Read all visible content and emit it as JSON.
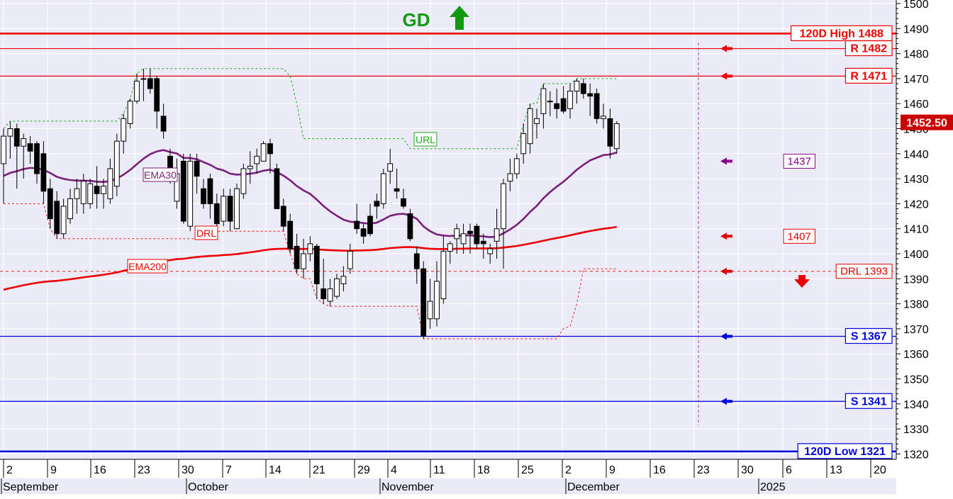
{
  "chart_data": {
    "type": "candlestick",
    "signal": {
      "label": "GD",
      "direction": "up",
      "color": "#119911"
    },
    "y_axis": {
      "min": 1320,
      "max": 1500,
      "step": 10,
      "position": "right"
    },
    "x_axis": {
      "day_ticks": [
        "2",
        "9",
        "16",
        "23",
        "30",
        "7",
        "14",
        "21",
        "29",
        "4",
        "11",
        "18",
        "25",
        "2",
        "9",
        "16",
        "23",
        "30",
        "6",
        "13",
        "20"
      ],
      "month_labels": [
        "September",
        "October",
        "November",
        "December",
        "2025"
      ]
    },
    "current_price": {
      "label": "1452.50",
      "value": 1452.5
    },
    "levels": [
      {
        "label": "120D High 1488",
        "value": 1488,
        "kind": "resistance",
        "arrow": false
      },
      {
        "label": "R 1482",
        "value": 1482,
        "kind": "resistance",
        "arrow": true
      },
      {
        "label": "R 1471",
        "value": 1471,
        "kind": "resistance",
        "arrow": true
      },
      {
        "label": "S 1367",
        "value": 1367,
        "kind": "support",
        "arrow": true
      },
      {
        "label": "S 1341",
        "value": 1341,
        "kind": "support",
        "arrow": true
      },
      {
        "label": "120D Low 1321",
        "value": 1321,
        "kind": "support",
        "arrow": false
      }
    ],
    "indicator_labels": [
      {
        "label": "1437",
        "value": 1437,
        "color": "#880088"
      },
      {
        "label": "1407",
        "value": 1407,
        "color": "#dd0000"
      },
      {
        "label": "DRL 1393",
        "value": 1393,
        "color": "#dd0000"
      }
    ],
    "series_tags": {
      "ema30": "EMA30",
      "ema200": "EMA200",
      "url": "URL",
      "drl": "DRL"
    },
    "candles": [
      [
        1436,
        1450,
        1420,
        1447
      ],
      [
        1447,
        1453,
        1438,
        1450
      ],
      [
        1450,
        1452,
        1426,
        1443
      ],
      [
        1443,
        1448,
        1430,
        1446
      ],
      [
        1444,
        1447,
        1436,
        1441
      ],
      [
        1444,
        1445,
        1428,
        1432
      ],
      [
        1440,
        1445,
        1420,
        1425
      ],
      [
        1426,
        1430,
        1410,
        1414
      ],
      [
        1421,
        1425,
        1406,
        1408
      ],
      [
        1408,
        1422,
        1406,
        1419
      ],
      [
        1414,
        1426,
        1412,
        1422
      ],
      [
        1422,
        1430,
        1416,
        1426
      ],
      [
        1420,
        1432,
        1416,
        1429
      ],
      [
        1420,
        1430,
        1418,
        1428
      ],
      [
        1427,
        1435,
        1418,
        1424
      ],
      [
        1424,
        1430,
        1418,
        1427
      ],
      [
        1422,
        1438,
        1420,
        1434
      ],
      [
        1427,
        1448,
        1423,
        1445
      ],
      [
        1445,
        1456,
        1440,
        1454
      ],
      [
        1452,
        1462,
        1450,
        1461
      ],
      [
        1461,
        1472,
        1460,
        1469
      ],
      [
        1470,
        1474,
        1461,
        1470
      ],
      [
        1470,
        1474,
        1464,
        1466
      ],
      [
        1470,
        1471,
        1450,
        1457
      ],
      [
        1455,
        1460,
        1446,
        1449
      ],
      [
        1439,
        1442,
        1428,
        1429
      ],
      [
        1421,
        1438,
        1418,
        1432
      ],
      [
        1437,
        1440,
        1412,
        1413
      ],
      [
        1411,
        1440,
        1409,
        1437
      ],
      [
        1437,
        1440,
        1424,
        1431
      ],
      [
        1426,
        1430,
        1418,
        1420
      ],
      [
        1430,
        1432,
        1414,
        1420
      ],
      [
        1420,
        1424,
        1410,
        1412
      ],
      [
        1413,
        1426,
        1411,
        1423
      ],
      [
        1423,
        1426,
        1409,
        1413
      ],
      [
        1410,
        1428,
        1410,
        1426
      ],
      [
        1424,
        1436,
        1422,
        1434
      ],
      [
        1434,
        1441,
        1428,
        1435
      ],
      [
        1436,
        1442,
        1432,
        1439
      ],
      [
        1437,
        1445,
        1437,
        1444
      ],
      [
        1444,
        1446,
        1432,
        1440
      ],
      [
        1434,
        1436,
        1418,
        1418
      ],
      [
        1419,
        1422,
        1409,
        1411
      ],
      [
        1413,
        1416,
        1400,
        1402
      ],
      [
        1403,
        1408,
        1392,
        1394
      ],
      [
        1394,
        1406,
        1390,
        1400
      ],
      [
        1400,
        1407,
        1397,
        1404
      ],
      [
        1403,
        1404,
        1382,
        1388
      ],
      [
        1386,
        1398,
        1380,
        1382
      ],
      [
        1381,
        1390,
        1379,
        1386
      ],
      [
        1383,
        1392,
        1382,
        1390
      ],
      [
        1388,
        1395,
        1385,
        1391
      ],
      [
        1394,
        1404,
        1392,
        1401
      ],
      [
        1413,
        1420,
        1408,
        1410
      ],
      [
        1410,
        1412,
        1404,
        1407
      ],
      [
        1415,
        1420,
        1407,
        1408
      ],
      [
        1421,
        1424,
        1414,
        1419
      ],
      [
        1420,
        1434,
        1418,
        1432
      ],
      [
        1433,
        1442,
        1428,
        1436
      ],
      [
        1426,
        1434,
        1422,
        1425
      ],
      [
        1422,
        1426,
        1418,
        1419
      ],
      [
        1416,
        1418,
        1405,
        1406
      ],
      [
        1400,
        1403,
        1388,
        1394
      ],
      [
        1394,
        1397,
        1366,
        1367
      ],
      [
        1374,
        1390,
        1370,
        1381
      ],
      [
        1374,
        1397,
        1371,
        1389
      ],
      [
        1382,
        1407,
        1380,
        1401
      ],
      [
        1401,
        1405,
        1396,
        1404
      ],
      [
        1406,
        1412,
        1400,
        1410
      ],
      [
        1404,
        1412,
        1400,
        1408
      ],
      [
        1409,
        1412,
        1400,
        1408
      ],
      [
        1411,
        1412,
        1402,
        1404
      ],
      [
        1405,
        1408,
        1398,
        1404
      ],
      [
        1400,
        1404,
        1396,
        1402
      ],
      [
        1405,
        1418,
        1398,
        1410
      ],
      [
        1410,
        1430,
        1394,
        1428
      ],
      [
        1429,
        1438,
        1425,
        1432
      ],
      [
        1432,
        1440,
        1430,
        1438
      ],
      [
        1440,
        1452,
        1436,
        1448
      ],
      [
        1444,
        1460,
        1440,
        1458
      ],
      [
        1452,
        1458,
        1446,
        1454
      ],
      [
        1456,
        1468,
        1450,
        1466
      ],
      [
        1461,
        1465,
        1455,
        1461
      ],
      [
        1460,
        1466,
        1454,
        1458
      ],
      [
        1462,
        1467,
        1456,
        1457
      ],
      [
        1458,
        1468,
        1454,
        1465
      ],
      [
        1465,
        1470,
        1460,
        1469
      ],
      [
        1468,
        1470,
        1462,
        1464
      ],
      [
        1464,
        1468,
        1455,
        1463
      ],
      [
        1464,
        1466,
        1452,
        1454
      ],
      [
        1454,
        1460,
        1450,
        1455
      ],
      [
        1454,
        1458,
        1438,
        1443
      ],
      [
        1442,
        1453,
        1440,
        1452
      ]
    ]
  }
}
